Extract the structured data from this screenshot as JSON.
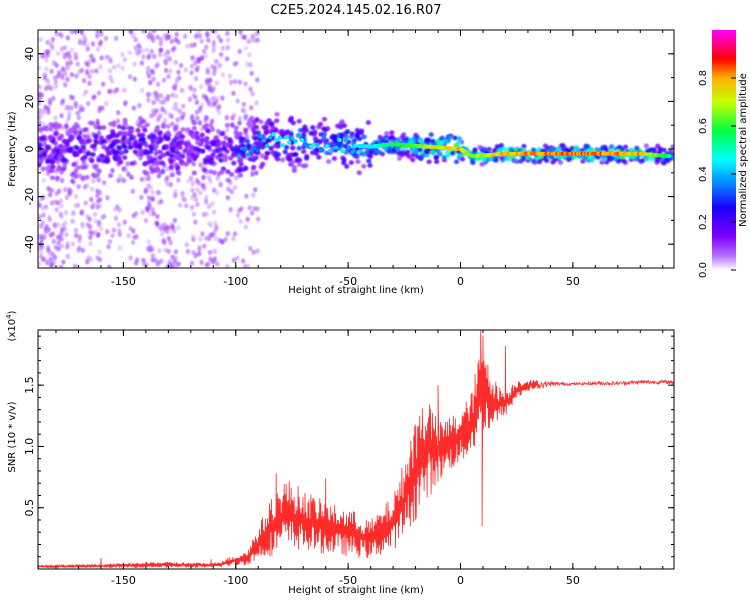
{
  "title": "C2E5.2024.145.02.16.R07",
  "chart_data": [
    {
      "type": "heatmap",
      "xlabel": "Height of straight line (km)",
      "ylabel": "Frequency (Hz)",
      "xlim": [
        -188,
        95
      ],
      "ylim": [
        -50,
        50
      ],
      "xticks": [
        -150,
        -100,
        -50,
        0,
        50
      ],
      "yticks": [
        -40,
        -20,
        0,
        20,
        40
      ],
      "colorbar": {
        "label": "Normalized spectral amplitude",
        "range": [
          0,
          1
        ],
        "ticks": [
          "0.0",
          "0.2",
          "0.4",
          "0.6",
          "0.8"
        ],
        "colors": [
          "#ffffff",
          "#7f00ff",
          "#0000ff",
          "#00ffff",
          "#00ff00",
          "#ffff00",
          "#ff0000",
          "#ff00ff"
        ]
      },
      "ridge": [
        {
          "x": -185,
          "f": 0.0,
          "amp": 0.3
        },
        {
          "x": -160,
          "f": 0.0,
          "amp": 0.3
        },
        {
          "x": -150,
          "f": 2.0,
          "amp": 0.35
        },
        {
          "x": -120,
          "f": 0.0,
          "amp": 0.3
        },
        {
          "x": -100,
          "f": -2.0,
          "amp": 0.35
        },
        {
          "x": -85,
          "f": 4.0,
          "amp": 0.45
        },
        {
          "x": -70,
          "f": 3.0,
          "amp": 0.45
        },
        {
          "x": -55,
          "f": 2.0,
          "amp": 0.45
        },
        {
          "x": -40,
          "f": 1.0,
          "amp": 0.5
        },
        {
          "x": -30,
          "f": 2.0,
          "amp": 0.6
        },
        {
          "x": -15,
          "f": 1.0,
          "amp": 0.75
        },
        {
          "x": 0,
          "f": 0.0,
          "amp": 0.85
        },
        {
          "x": 5,
          "f": -3.0,
          "amp": 0.7
        },
        {
          "x": 20,
          "f": -2.0,
          "amp": 0.85
        },
        {
          "x": 50,
          "f": -2.0,
          "amp": 0.9
        },
        {
          "x": 80,
          "f": -2.0,
          "amp": 0.85
        },
        {
          "x": 93,
          "f": -3.0,
          "amp": 0.55
        }
      ]
    },
    {
      "type": "line",
      "xlabel": "Height of straight line (km)",
      "ylabel": "SNR (10 * v/v)",
      "y_multiplier": "(x10",
      "y_multiplier_exp": "4",
      "xlim": [
        -188,
        95
      ],
      "ylim": [
        0,
        1.95
      ],
      "xticks": [
        -150,
        -100,
        -50,
        0,
        50
      ],
      "yticks": [
        "0.5",
        "1.0",
        "1.5"
      ],
      "color": "#ff2a2a",
      "envelope": {
        "x": [
          -188,
          -160,
          -135,
          -110,
          -95,
          -85,
          -78,
          -70,
          -60,
          -50,
          -40,
          -30,
          -25,
          -20,
          -15,
          -10,
          -5,
          0,
          5,
          10,
          15,
          20,
          25,
          30,
          40,
          50,
          60,
          70,
          80,
          95
        ],
        "low": [
          0.01,
          0.01,
          0.01,
          0.01,
          0.03,
          0.1,
          0.15,
          0.15,
          0.12,
          0.1,
          0.08,
          0.15,
          0.25,
          0.4,
          0.55,
          0.7,
          0.8,
          0.85,
          0.95,
          1.05,
          1.15,
          1.25,
          1.38,
          1.45,
          1.49,
          1.5,
          1.5,
          1.5,
          1.51,
          1.51
        ],
        "high": [
          0.03,
          0.04,
          0.06,
          0.05,
          0.15,
          0.55,
          0.75,
          0.65,
          0.55,
          0.5,
          0.4,
          0.6,
          0.9,
          1.25,
          1.45,
          1.2,
          1.25,
          1.3,
          1.45,
          1.95,
          1.55,
          1.45,
          1.55,
          1.55,
          1.53,
          1.52,
          1.53,
          1.53,
          1.54,
          1.54
        ]
      },
      "spikes": [
        {
          "x": -160,
          "y": 0.09
        },
        {
          "x": -111,
          "y": 0.08
        },
        {
          "x": -82,
          "y": 0.78
        },
        {
          "x": -60,
          "y": 0.74
        },
        {
          "x": -17,
          "y": 1.31
        },
        {
          "x": -10,
          "y": 1.5
        },
        {
          "x": 9,
          "y": 1.95
        },
        {
          "x": 9.6,
          "y": 0.35
        },
        {
          "x": 20,
          "y": 1.82
        }
      ]
    }
  ]
}
